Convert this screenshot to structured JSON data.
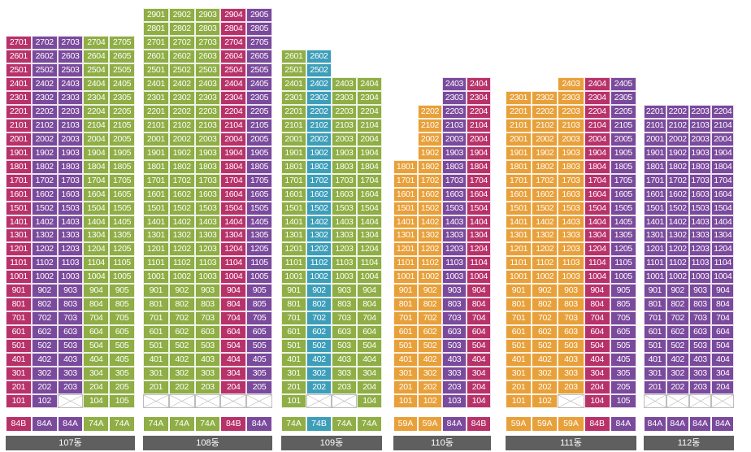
{
  "colors": {
    "84A": "#7a4a9c",
    "84B": "#b8326a",
    "74A": "#8fae45",
    "74B": "#3d9eb9",
    "59A": "#e8a03a",
    "empty": "#ffffff",
    "building_bar": "#5f5f5f"
  },
  "buildings": [
    {
      "name": "107동",
      "types": [
        "84B",
        "84A",
        "84A",
        "74A",
        "74A"
      ],
      "floors": 27,
      "line_floors": [
        27,
        27,
        27,
        27,
        27
      ],
      "empty_cells": [
        [
          1,
          3
        ]
      ]
    },
    {
      "name": "108동",
      "types": [
        "74A",
        "74A",
        "74A",
        "84B",
        "84A"
      ],
      "floors": 29,
      "line_floors": [
        29,
        29,
        29,
        29,
        29
      ],
      "empty_cells": [
        [
          1,
          1
        ],
        [
          1,
          2
        ],
        [
          1,
          3
        ],
        [
          1,
          4
        ],
        [
          1,
          5
        ]
      ]
    },
    {
      "name": "109동",
      "types": [
        "74A",
        "74B",
        "74A",
        "74A"
      ],
      "floors": 26,
      "line_floors": [
        26,
        26,
        24,
        24
      ],
      "empty_cells": [
        [
          1,
          2
        ],
        [
          1,
          3
        ]
      ]
    },
    {
      "name": "110동",
      "types": [
        "59A",
        "59A",
        "84A",
        "84B"
      ],
      "floors": 24,
      "line_floors": [
        18,
        22,
        24,
        24
      ],
      "empty_cells": []
    },
    {
      "name": "111동",
      "types": [
        "59A",
        "59A",
        "59A",
        "84B",
        "84A"
      ],
      "floors": 24,
      "line_floors": [
        23,
        23,
        24,
        24,
        24
      ],
      "empty_cells": [
        [
          1,
          3
        ]
      ]
    },
    {
      "name": "112동",
      "types": [
        "84A",
        "84A",
        "84A",
        "84A"
      ],
      "floors": 22,
      "line_floors": [
        22,
        22,
        22,
        22
      ],
      "empty_cells": [
        [
          1,
          1
        ],
        [
          1,
          2
        ],
        [
          1,
          3
        ],
        [
          1,
          4
        ]
      ]
    }
  ]
}
